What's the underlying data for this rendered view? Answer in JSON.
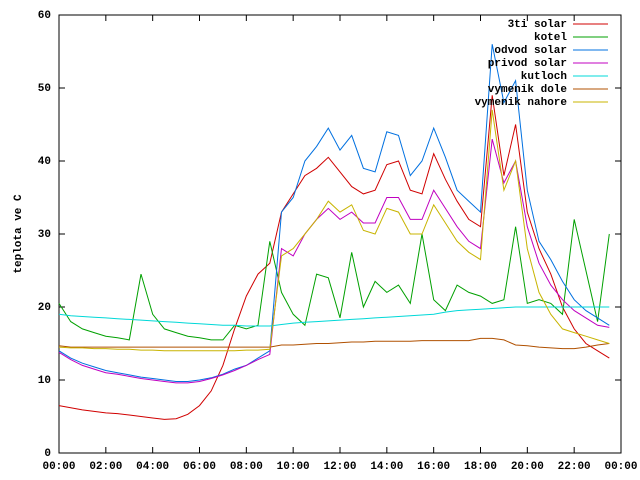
{
  "chart_data": {
    "type": "line",
    "y_label": "teplota ve C",
    "xlim": [
      0,
      24
    ],
    "ylim": [
      0,
      60
    ],
    "xticks": [
      {
        "value": 0,
        "label": "00:00"
      },
      {
        "value": 2,
        "label": "02:00"
      },
      {
        "value": 4,
        "label": "04:00"
      },
      {
        "value": 6,
        "label": "06:00"
      },
      {
        "value": 8,
        "label": "08:00"
      },
      {
        "value": 10,
        "label": "10:00"
      },
      {
        "value": 12,
        "label": "12:00"
      },
      {
        "value": 14,
        "label": "14:00"
      },
      {
        "value": 16,
        "label": "16:00"
      },
      {
        "value": 18,
        "label": "18:00"
      },
      {
        "value": 20,
        "label": "20:00"
      },
      {
        "value": 22,
        "label": "22:00"
      },
      {
        "value": 24,
        "label": "00:00"
      }
    ],
    "yticks": [
      0,
      10,
      20,
      30,
      40,
      50,
      60
    ],
    "legend": "top-right",
    "x": [
      0,
      0.5,
      1,
      1.5,
      2,
      2.5,
      3,
      3.5,
      4,
      4.5,
      5,
      5.5,
      6,
      6.5,
      7,
      7.5,
      8,
      8.5,
      9,
      9.5,
      10,
      10.5,
      11,
      11.5,
      12,
      12.5,
      13,
      13.5,
      14,
      14.5,
      15,
      15.5,
      16,
      16.5,
      17,
      17.5,
      18,
      18.5,
      19,
      19.5,
      20,
      20.5,
      21,
      21.5,
      22,
      22.5,
      23,
      23.5
    ],
    "series": [
      {
        "name": "3ti solar",
        "color": "#d00000",
        "values": [
          6.5,
          6.2,
          5.9,
          5.7,
          5.5,
          5.4,
          5.2,
          5.0,
          4.8,
          4.6,
          4.7,
          5.3,
          6.5,
          8.5,
          12,
          17,
          21.5,
          24.5,
          26,
          33,
          35.5,
          38,
          39,
          40.5,
          38.5,
          36.5,
          35.5,
          36,
          39.5,
          40,
          36,
          35.5,
          41,
          37.5,
          34.5,
          32,
          31,
          49,
          38,
          45,
          33,
          28,
          24.5,
          20,
          17,
          15,
          14,
          13
        ]
      },
      {
        "name": "kotel",
        "color": "#00a000",
        "values": [
          20.5,
          18,
          17,
          16.5,
          16,
          15.8,
          15.5,
          24.5,
          19,
          17,
          16.5,
          16,
          15.8,
          15.5,
          15.5,
          17.5,
          17,
          17.5,
          29,
          22,
          19,
          17.5,
          24.5,
          24,
          18.5,
          27.5,
          20,
          23.5,
          22,
          23,
          20.5,
          30,
          21,
          19.5,
          23,
          22,
          21.5,
          20.5,
          21,
          31,
          20.5,
          21,
          20.5,
          19,
          32,
          25,
          18,
          30
        ]
      },
      {
        "name": "odvod solar",
        "color": "#0070e0",
        "values": [
          14,
          13,
          12.3,
          11.8,
          11.3,
          11,
          10.7,
          10.4,
          10.2,
          10,
          9.8,
          9.8,
          10,
          10.3,
          10.8,
          11.5,
          12,
          13,
          14,
          33,
          35,
          40,
          42,
          44.5,
          41.5,
          43.5,
          39,
          38.5,
          44,
          43.5,
          38,
          40,
          44.5,
          40.5,
          36,
          34.5,
          33,
          56,
          48,
          51,
          36,
          29,
          26.5,
          23.5,
          21,
          19.5,
          18.5,
          17.5
        ]
      },
      {
        "name": "privod solar",
        "color": "#c000c0",
        "values": [
          13.8,
          12.8,
          12,
          11.5,
          11,
          10.8,
          10.5,
          10.2,
          10,
          9.8,
          9.6,
          9.6,
          9.8,
          10.2,
          10.7,
          11.3,
          12,
          12.8,
          13.5,
          28,
          27,
          30,
          32,
          33.5,
          32,
          33,
          31.5,
          31.5,
          35,
          35,
          32,
          32,
          36,
          33.5,
          31,
          29,
          28,
          43,
          37,
          40,
          31,
          26,
          23,
          21,
          19.5,
          18.5,
          17.5,
          17.2
        ]
      },
      {
        "name": "kutloch",
        "color": "#00d8d8",
        "values": [
          19,
          18.8,
          18.7,
          18.6,
          18.5,
          18.4,
          18.3,
          18.2,
          18.1,
          18,
          17.9,
          17.8,
          17.7,
          17.6,
          17.5,
          17.5,
          17.4,
          17.4,
          17.4,
          17.6,
          17.8,
          17.9,
          18,
          18.1,
          18.2,
          18.3,
          18.4,
          18.5,
          18.6,
          18.7,
          18.8,
          18.9,
          19,
          19.3,
          19.5,
          19.6,
          19.7,
          19.8,
          19.9,
          20,
          20,
          20,
          20,
          20,
          20,
          20,
          20,
          20
        ]
      },
      {
        "name": "vymenik dole",
        "color": "#b05000",
        "values": [
          14.7,
          14.5,
          14.5,
          14.5,
          14.5,
          14.5,
          14.5,
          14.5,
          14.5,
          14.5,
          14.5,
          14.5,
          14.5,
          14.5,
          14.5,
          14.5,
          14.5,
          14.5,
          14.5,
          14.8,
          14.8,
          14.9,
          15,
          15,
          15.1,
          15.2,
          15.2,
          15.3,
          15.3,
          15.3,
          15.3,
          15.4,
          15.4,
          15.4,
          15.4,
          15.4,
          15.7,
          15.7,
          15.5,
          14.8,
          14.7,
          14.5,
          14.4,
          14.3,
          14.3,
          14.5,
          14.8,
          15
        ]
      },
      {
        "name": "vymenik nahore",
        "color": "#c8b400",
        "values": [
          14.5,
          14.4,
          14.4,
          14.3,
          14.3,
          14.2,
          14.2,
          14.1,
          14.1,
          14,
          14,
          14,
          14,
          14,
          14,
          14,
          14.1,
          14.1,
          14.2,
          27,
          28,
          30,
          32,
          34.5,
          33,
          34,
          30.5,
          30,
          33.5,
          33,
          30,
          30,
          34,
          31.5,
          29,
          27.5,
          26.5,
          47,
          36,
          40,
          28,
          22,
          19,
          17,
          16.5,
          16,
          15.5,
          15
        ]
      }
    ]
  }
}
